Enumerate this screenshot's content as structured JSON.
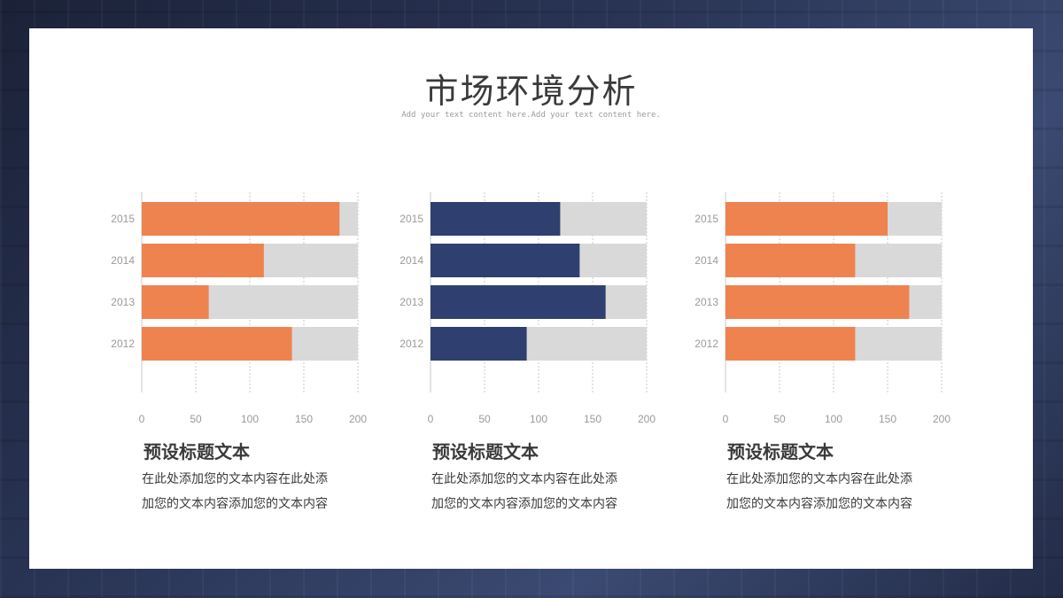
{
  "slide": {
    "title": "市场环境分析",
    "subtitle": "Add your text content here.Add your text content here."
  },
  "colors": {
    "orange": "#ee8350",
    "navy": "#2f3f6f",
    "track": "#d9d9d9"
  },
  "chart_data": [
    {
      "type": "bar",
      "orientation": "horizontal",
      "categories": [
        "2015",
        "2014",
        "2013",
        "2012"
      ],
      "values": [
        183,
        113,
        62,
        139
      ],
      "xlim": [
        0,
        200
      ],
      "xticks": [
        0,
        50,
        100,
        150,
        200
      ],
      "color": "#ee8350"
    },
    {
      "type": "bar",
      "orientation": "horizontal",
      "categories": [
        "2015",
        "2014",
        "2013",
        "2012"
      ],
      "values": [
        120,
        138,
        162,
        89
      ],
      "xlim": [
        0,
        200
      ],
      "xticks": [
        0,
        50,
        100,
        150,
        200
      ],
      "color": "#2f3f6f"
    },
    {
      "type": "bar",
      "orientation": "horizontal",
      "categories": [
        "2015",
        "2014",
        "2013",
        "2012"
      ],
      "values": [
        150,
        120,
        170,
        120
      ],
      "xlim": [
        0,
        200
      ],
      "xticks": [
        0,
        50,
        100,
        150,
        200
      ],
      "color": "#ee8350"
    }
  ],
  "sections": [
    {
      "heading": "预设标题文本",
      "line1": "在此处添加您的文本内容在此处添",
      "line2": "加您的文本内容添加您的文本内容"
    },
    {
      "heading": "预设标题文本",
      "line1": "在此处添加您的文本内容在此处添",
      "line2": "加您的文本内容添加您的文本内容"
    },
    {
      "heading": "预设标题文本",
      "line1": "在此处添加您的文本内容在此处添",
      "line2": "加您的文本内容添加您的文本内容"
    }
  ]
}
